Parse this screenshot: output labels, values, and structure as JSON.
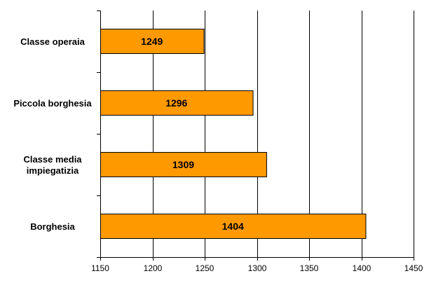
{
  "chart_data": {
    "type": "bar",
    "orientation": "horizontal",
    "categories": [
      [
        "Classe operaia"
      ],
      [
        "Piccola borghesia"
      ],
      [
        "Classe media",
        "impiegatizia"
      ],
      [
        "Borghesia"
      ]
    ],
    "values": [
      1249,
      1296,
      1309,
      1404
    ],
    "data_labels": [
      "1249",
      "1296",
      "1309",
      "1404"
    ],
    "title": "",
    "xlabel": "",
    "ylabel": "",
    "xlim": [
      1150,
      1450
    ],
    "xticks": [
      1150,
      1200,
      1250,
      1300,
      1350,
      1400,
      1450
    ],
    "grid": true,
    "legend": "none",
    "bar_color": "#ff9900",
    "bar_border_color": "#000000",
    "grid_color": "#000000"
  }
}
